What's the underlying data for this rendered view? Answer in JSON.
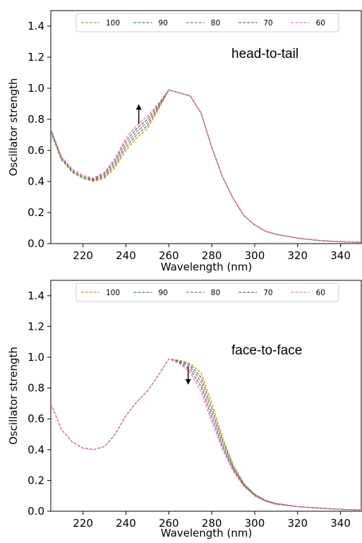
{
  "chart_data": [
    {
      "type": "line",
      "annotation": "head-to-tail",
      "xlabel": "Wavelength (nm)",
      "ylabel": "Oscillator strength",
      "xlim": [
        205,
        350
      ],
      "ylim": [
        0.0,
        1.5
      ],
      "x_ticks": [
        220,
        240,
        260,
        280,
        300,
        320,
        340
      ],
      "y_ticks": [
        0.0,
        0.2,
        0.4,
        0.6,
        0.8,
        1.0,
        1.2,
        1.4
      ],
      "grid": false,
      "legend_position": "top",
      "arrow": {
        "direction": "up",
        "x": 246,
        "y_from": 0.77,
        "y_to": 0.88
      },
      "x": [
        205,
        210,
        215,
        220,
        225,
        230,
        235,
        240,
        245,
        250,
        255,
        260,
        265,
        270,
        275,
        280,
        285,
        290,
        295,
        300,
        305,
        310,
        320,
        330,
        340,
        350
      ],
      "series": [
        {
          "name": "100",
          "color": "#ff7f0e",
          "values": [
            0.72,
            0.54,
            0.46,
            0.42,
            0.4,
            0.42,
            0.49,
            0.6,
            0.68,
            0.74,
            0.86,
            0.99,
            0.97,
            0.95,
            0.84,
            0.62,
            0.43,
            0.29,
            0.18,
            0.12,
            0.08,
            0.06,
            0.035,
            0.02,
            0.012,
            0.008
          ]
        },
        {
          "name": "90",
          "color": "#2ca02c",
          "values": [
            0.72,
            0.54,
            0.46,
            0.42,
            0.405,
            0.43,
            0.505,
            0.62,
            0.7,
            0.76,
            0.87,
            0.99,
            0.97,
            0.95,
            0.84,
            0.62,
            0.43,
            0.29,
            0.18,
            0.12,
            0.08,
            0.06,
            0.035,
            0.02,
            0.012,
            0.008
          ]
        },
        {
          "name": "80",
          "color": "#9467bd",
          "values": [
            0.73,
            0.55,
            0.47,
            0.43,
            0.41,
            0.44,
            0.52,
            0.64,
            0.72,
            0.78,
            0.88,
            0.99,
            0.97,
            0.95,
            0.84,
            0.62,
            0.43,
            0.29,
            0.18,
            0.12,
            0.08,
            0.06,
            0.035,
            0.02,
            0.012,
            0.008
          ]
        },
        {
          "name": "70",
          "color": "#8c564b",
          "values": [
            0.73,
            0.55,
            0.47,
            0.43,
            0.415,
            0.45,
            0.535,
            0.66,
            0.74,
            0.8,
            0.89,
            0.99,
            0.97,
            0.95,
            0.84,
            0.62,
            0.43,
            0.29,
            0.18,
            0.12,
            0.08,
            0.06,
            0.035,
            0.02,
            0.012,
            0.008
          ]
        },
        {
          "name": "60",
          "color": "#e377c2",
          "values": [
            0.74,
            0.56,
            0.48,
            0.44,
            0.42,
            0.46,
            0.55,
            0.68,
            0.76,
            0.82,
            0.9,
            0.99,
            0.97,
            0.95,
            0.84,
            0.62,
            0.43,
            0.29,
            0.18,
            0.12,
            0.08,
            0.06,
            0.035,
            0.02,
            0.012,
            0.008
          ]
        }
      ]
    },
    {
      "type": "line",
      "annotation": "face-to-face",
      "xlabel": "Wavelength (nm)",
      "ylabel": "Oscillator strength",
      "xlim": [
        205,
        350
      ],
      "ylim": [
        0.0,
        1.5
      ],
      "x_ticks": [
        220,
        240,
        260,
        280,
        300,
        320,
        340
      ],
      "y_ticks": [
        0.0,
        0.2,
        0.4,
        0.6,
        0.8,
        1.0,
        1.2,
        1.4
      ],
      "grid": false,
      "legend_position": "top",
      "arrow": {
        "direction": "down",
        "x": 269,
        "y_from": 0.94,
        "y_to": 0.84
      },
      "x": [
        205,
        210,
        215,
        220,
        225,
        230,
        235,
        240,
        245,
        250,
        255,
        260,
        265,
        270,
        275,
        280,
        285,
        290,
        295,
        300,
        305,
        310,
        320,
        330,
        340,
        350
      ],
      "series": [
        {
          "name": "100",
          "color": "#ff7f0e",
          "values": [
            0.7,
            0.53,
            0.45,
            0.41,
            0.4,
            0.42,
            0.5,
            0.62,
            0.71,
            0.78,
            0.88,
            0.99,
            0.98,
            0.96,
            0.9,
            0.7,
            0.48,
            0.3,
            0.18,
            0.11,
            0.07,
            0.05,
            0.03,
            0.02,
            0.012,
            0.008
          ]
        },
        {
          "name": "90",
          "color": "#2ca02c",
          "values": [
            0.7,
            0.53,
            0.45,
            0.41,
            0.4,
            0.42,
            0.5,
            0.62,
            0.71,
            0.78,
            0.88,
            0.99,
            0.975,
            0.95,
            0.87,
            0.67,
            0.46,
            0.29,
            0.175,
            0.11,
            0.07,
            0.05,
            0.03,
            0.02,
            0.012,
            0.008
          ]
        },
        {
          "name": "80",
          "color": "#9467bd",
          "values": [
            0.7,
            0.53,
            0.45,
            0.41,
            0.4,
            0.42,
            0.5,
            0.62,
            0.71,
            0.78,
            0.88,
            0.99,
            0.97,
            0.94,
            0.84,
            0.64,
            0.44,
            0.28,
            0.17,
            0.105,
            0.07,
            0.05,
            0.03,
            0.02,
            0.012,
            0.008
          ]
        },
        {
          "name": "70",
          "color": "#8c564b",
          "values": [
            0.7,
            0.53,
            0.45,
            0.41,
            0.4,
            0.42,
            0.5,
            0.62,
            0.71,
            0.78,
            0.88,
            0.99,
            0.965,
            0.92,
            0.81,
            0.61,
            0.42,
            0.27,
            0.165,
            0.1,
            0.065,
            0.045,
            0.03,
            0.02,
            0.012,
            0.008
          ]
        },
        {
          "name": "60",
          "color": "#e377c2",
          "values": [
            0.7,
            0.53,
            0.45,
            0.41,
            0.4,
            0.42,
            0.5,
            0.62,
            0.71,
            0.78,
            0.88,
            0.99,
            0.96,
            0.9,
            0.78,
            0.58,
            0.4,
            0.26,
            0.16,
            0.1,
            0.065,
            0.045,
            0.03,
            0.02,
            0.012,
            0.008
          ]
        }
      ]
    }
  ]
}
